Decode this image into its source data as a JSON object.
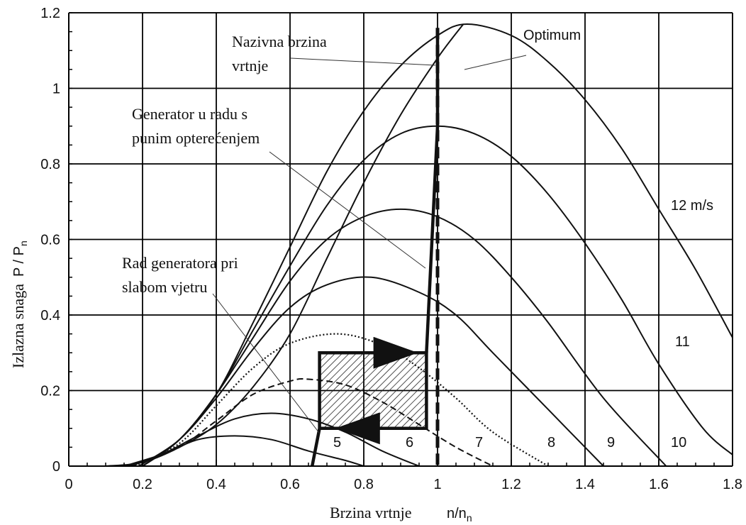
{
  "chart_data": {
    "type": "line",
    "xlabel": "Brzina vrtnje",
    "xlabel_unit_main": "n/n",
    "xlabel_unit_sub": "n",
    "ylabel": "Izlazna snaga",
    "ylabel_unit_main": "P / P",
    "ylabel_unit_sub": "n",
    "xlim": [
      0,
      1.8
    ],
    "ylim": [
      0,
      1.2
    ],
    "x_ticks": [
      "0",
      "0.2",
      "0.4",
      "0.6",
      "0.8",
      "1",
      "1.2",
      "1.4",
      "1.6",
      "1.8"
    ],
    "y_ticks": [
      "0",
      "0.2",
      "0.4",
      "0.6",
      "0.8",
      "1",
      "1.2"
    ],
    "x_tick_values": [
      0,
      0.2,
      0.4,
      0.6,
      0.8,
      1.0,
      1.2,
      1.4,
      1.6,
      1.8
    ],
    "y_tick_values": [
      0,
      0.2,
      0.4,
      0.6,
      0.8,
      1.0,
      1.2
    ],
    "grid": true,
    "series": [
      {
        "name": "5",
        "style": "solid",
        "peak": [
          0.45,
          0.08
        ],
        "points": [
          [
            0.15,
            0.0
          ],
          [
            0.25,
            0.03
          ],
          [
            0.35,
            0.07
          ],
          [
            0.45,
            0.08
          ],
          [
            0.55,
            0.07
          ],
          [
            0.65,
            0.04
          ],
          [
            0.75,
            0.015
          ],
          [
            0.8,
            0.0
          ]
        ]
      },
      {
        "name": "6",
        "style": "solid",
        "peak": [
          0.55,
          0.14
        ],
        "points": [
          [
            0.16,
            0.0
          ],
          [
            0.25,
            0.03
          ],
          [
            0.35,
            0.08
          ],
          [
            0.45,
            0.125
          ],
          [
            0.55,
            0.14
          ],
          [
            0.65,
            0.125
          ],
          [
            0.75,
            0.09
          ],
          [
            0.85,
            0.04
          ],
          [
            0.95,
            0.0
          ]
        ]
      },
      {
        "name": "7",
        "style": "dashed",
        "peak": [
          0.65,
          0.23
        ],
        "points": [
          [
            0.17,
            0.0
          ],
          [
            0.3,
            0.05
          ],
          [
            0.4,
            0.12
          ],
          [
            0.5,
            0.19
          ],
          [
            0.6,
            0.225
          ],
          [
            0.65,
            0.23
          ],
          [
            0.75,
            0.215
          ],
          [
            0.85,
            0.17
          ],
          [
            0.95,
            0.11
          ],
          [
            1.05,
            0.05
          ],
          [
            1.15,
            0.0
          ]
        ]
      },
      {
        "name": "8",
        "style": "dotted",
        "peak": [
          0.73,
          0.35
        ],
        "points": [
          [
            0.18,
            0.0
          ],
          [
            0.3,
            0.06
          ],
          [
            0.4,
            0.16
          ],
          [
            0.5,
            0.26
          ],
          [
            0.6,
            0.325
          ],
          [
            0.73,
            0.35
          ],
          [
            0.85,
            0.32
          ],
          [
            0.95,
            0.26
          ],
          [
            1.05,
            0.18
          ],
          [
            1.15,
            0.09
          ],
          [
            1.3,
            0.0
          ]
        ]
      },
      {
        "name": "9",
        "style": "solid",
        "peak": [
          0.82,
          0.5
        ],
        "points": [
          [
            0.19,
            0.0
          ],
          [
            0.3,
            0.07
          ],
          [
            0.4,
            0.18
          ],
          [
            0.5,
            0.31
          ],
          [
            0.6,
            0.42
          ],
          [
            0.7,
            0.48
          ],
          [
            0.82,
            0.5
          ],
          [
            0.95,
            0.46
          ],
          [
            1.05,
            0.4
          ],
          [
            1.15,
            0.3
          ],
          [
            1.3,
            0.15
          ],
          [
            1.45,
            0.0
          ]
        ]
      },
      {
        "name": "10",
        "style": "solid",
        "peak": [
          0.9,
          0.68
        ],
        "points": [
          [
            0.2,
            0.0
          ],
          [
            0.3,
            0.07
          ],
          [
            0.4,
            0.19
          ],
          [
            0.5,
            0.34
          ],
          [
            0.6,
            0.49
          ],
          [
            0.7,
            0.6
          ],
          [
            0.8,
            0.66
          ],
          [
            0.9,
            0.68
          ],
          [
            1.0,
            0.66
          ],
          [
            1.1,
            0.6
          ],
          [
            1.2,
            0.5
          ],
          [
            1.3,
            0.38
          ],
          [
            1.45,
            0.18
          ],
          [
            1.62,
            0.0
          ]
        ]
      },
      {
        "name": "11",
        "style": "solid",
        "peak": [
          1.0,
          0.9
        ],
        "points": [
          [
            0.2,
            0.0
          ],
          [
            0.3,
            0.07
          ],
          [
            0.4,
            0.19
          ],
          [
            0.5,
            0.36
          ],
          [
            0.6,
            0.53
          ],
          [
            0.7,
            0.69
          ],
          [
            0.8,
            0.81
          ],
          [
            0.9,
            0.88
          ],
          [
            1.0,
            0.9
          ],
          [
            1.1,
            0.88
          ],
          [
            1.2,
            0.82
          ],
          [
            1.3,
            0.72
          ],
          [
            1.4,
            0.59
          ],
          [
            1.5,
            0.44
          ],
          [
            1.6,
            0.27
          ],
          [
            1.72,
            0.1
          ],
          [
            1.8,
            0.03
          ]
        ]
      },
      {
        "name": "12 m/s",
        "style": "solid",
        "peak": [
          1.08,
          1.17
        ],
        "points": [
          [
            0.2,
            0.0
          ],
          [
            0.3,
            0.07
          ],
          [
            0.4,
            0.19
          ],
          [
            0.5,
            0.38
          ],
          [
            0.6,
            0.58
          ],
          [
            0.7,
            0.78
          ],
          [
            0.8,
            0.94
          ],
          [
            0.9,
            1.06
          ],
          [
            1.0,
            1.14
          ],
          [
            1.08,
            1.17
          ],
          [
            1.2,
            1.14
          ],
          [
            1.3,
            1.07
          ],
          [
            1.4,
            0.97
          ],
          [
            1.5,
            0.84
          ],
          [
            1.6,
            0.68
          ],
          [
            1.7,
            0.52
          ],
          [
            1.8,
            0.34
          ]
        ]
      },
      {
        "name": "Optimum",
        "style": "solid",
        "points": [
          [
            0.1,
            0.0
          ],
          [
            0.2,
            0.01
          ],
          [
            0.3,
            0.05
          ],
          [
            0.4,
            0.11
          ],
          [
            0.5,
            0.21
          ],
          [
            0.6,
            0.35
          ],
          [
            0.7,
            0.55
          ],
          [
            0.8,
            0.75
          ],
          [
            0.9,
            0.93
          ],
          [
            1.0,
            1.08
          ],
          [
            1.07,
            1.17
          ]
        ]
      }
    ],
    "control_path": [
      [
        0.66,
        0.0
      ],
      [
        0.68,
        0.1
      ],
      [
        0.68,
        0.3
      ],
      [
        0.97,
        0.3
      ],
      [
        0.97,
        0.1
      ],
      [
        0.68,
        0.1
      ]
    ],
    "rated_speed_rise": [
      [
        0.97,
        0.3
      ],
      [
        1.0,
        0.9
      ],
      [
        1.0,
        1.15
      ]
    ],
    "rated_speed_line_x": 1.0,
    "hatched_region": {
      "x": [
        0.68,
        0.97
      ],
      "y": [
        0.1,
        0.3
      ]
    },
    "annotations": {
      "nazivna_line1": "Nazivna brzina",
      "nazivna_line2": "vrtnje",
      "optimum": "Optimum",
      "generator_line1": "Generator u radu s",
      "generator_line2": "punim opterećenjem",
      "rad_line1": "Rad generatora pri",
      "rad_line2": "slabom vjetru"
    },
    "curve_labels": [
      "5",
      "6",
      "7",
      "8",
      "9",
      "10",
      "11",
      "12 m/s"
    ]
  }
}
